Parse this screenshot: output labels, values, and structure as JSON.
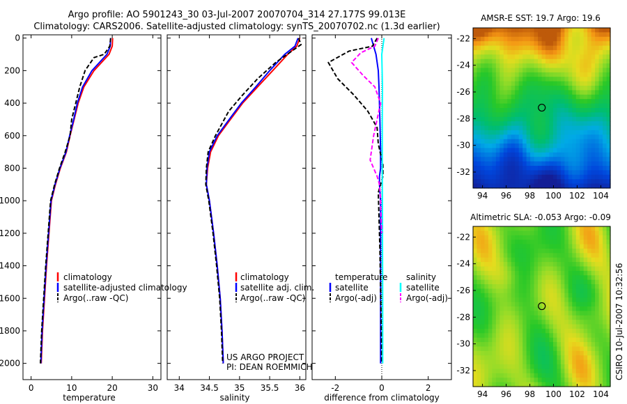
{
  "title": {
    "line1": "Argo profile: AO 5901243_30 03-Jul-2007 20070704_314 27.177S 99.013E",
    "line2": "Climatology: CARS2006. Satellite-adjusted climatology: synTS_20070702.nc (1.3d earlier)"
  },
  "colors": {
    "climatology": "#ff0000",
    "satellite": "#0000ff",
    "argo": "#000000",
    "salinity_satellite": "#00ffff",
    "salinity_argo": "#ff00ff"
  },
  "chart_data": [
    {
      "type": "line",
      "panel": "temperature",
      "xlabel": "temperature",
      "ylabel": "",
      "xlim": [
        -2,
        32
      ],
      "ylim": [
        2100,
        -20
      ],
      "y_reversed": true,
      "xticks": [
        0,
        10,
        20,
        30
      ],
      "yticks": [
        0,
        200,
        400,
        600,
        800,
        1000,
        1200,
        1400,
        1600,
        1800,
        2000
      ],
      "series": [
        {
          "name": "climatology",
          "style": "solid",
          "color": "#ff0000",
          "x": [
            20.1,
            20.0,
            19.2,
            15.5,
            13.0,
            11.6,
            10.6,
            9.6,
            8.7,
            7.2,
            6.0,
            5.0,
            4.4,
            3.8,
            3.3,
            2.8,
            2.5
          ],
          "y": [
            0,
            50,
            100,
            200,
            300,
            400,
            500,
            600,
            700,
            800,
            900,
            1000,
            1200,
            1400,
            1600,
            1800,
            2000
          ]
        },
        {
          "name": "satellite-adjusted climatology",
          "style": "solid",
          "color": "#0000ff",
          "x": [
            19.6,
            19.5,
            18.7,
            15.0,
            12.7,
            11.4,
            10.5,
            9.5,
            8.6,
            7.1,
            5.9,
            4.9,
            4.3,
            3.7,
            3.2,
            2.7,
            2.4
          ],
          "y": [
            0,
            50,
            100,
            200,
            300,
            400,
            500,
            600,
            700,
            800,
            900,
            1000,
            1200,
            1400,
            1600,
            1800,
            2000
          ]
        },
        {
          "name": "Argo(..raw -QC)",
          "style": "dashed",
          "color": "#000000",
          "x": [
            19.6,
            19.4,
            18.0,
            15.5,
            13.3,
            12.0,
            11.0,
            10.0,
            9.6,
            8.4,
            7.0,
            5.8,
            4.8,
            4.2,
            3.6,
            3.1,
            2.6,
            2.3
          ],
          "y": [
            0,
            50,
            100,
            120,
            200,
            300,
            400,
            500,
            600,
            700,
            800,
            900,
            1000,
            1200,
            1400,
            1600,
            1800,
            2000
          ]
        }
      ],
      "legend": [
        "climatology",
        "satellite-adjusted climatology",
        "Argo(..raw -QC)"
      ]
    },
    {
      "type": "line",
      "panel": "salinity",
      "xlabel": "salinity",
      "ylabel": "",
      "xlim": [
        33.8,
        36.1
      ],
      "ylim": [
        2100,
        -20
      ],
      "y_reversed": true,
      "xticks": [
        34,
        34.5,
        35,
        35.5,
        36
      ],
      "series": [
        {
          "name": "climatology",
          "style": "solid",
          "color": "#ff0000",
          "x": [
            36.0,
            35.95,
            35.8,
            35.55,
            35.3,
            35.05,
            34.85,
            34.65,
            34.52,
            34.47,
            34.45,
            34.5,
            34.57,
            34.63,
            34.68,
            34.71,
            34.73
          ],
          "y": [
            0,
            50,
            100,
            200,
            300,
            400,
            500,
            600,
            700,
            800,
            900,
            1000,
            1200,
            1400,
            1600,
            1800,
            2000
          ]
        },
        {
          "name": "satellite adj. clim.",
          "style": "solid",
          "color": "#0000ff",
          "x": [
            35.97,
            35.92,
            35.75,
            35.5,
            35.27,
            35.03,
            34.83,
            34.63,
            34.5,
            34.46,
            34.45,
            34.5,
            34.57,
            34.63,
            34.68,
            34.71,
            34.73
          ],
          "y": [
            0,
            50,
            100,
            200,
            300,
            400,
            500,
            600,
            700,
            800,
            900,
            1000,
            1200,
            1400,
            1600,
            1800,
            2000
          ]
        },
        {
          "name": "Argo(..raw -QC)",
          "style": "dashed",
          "color": "#000000",
          "x": [
            35.98,
            36.02,
            35.6,
            35.3,
            35.05,
            34.82,
            34.6,
            34.48,
            34.45,
            34.44,
            34.49,
            34.56,
            34.62,
            34.67,
            34.7,
            34.72
          ],
          "y": [
            0,
            40,
            150,
            250,
            350,
            450,
            600,
            700,
            800,
            900,
            1000,
            1200,
            1400,
            1600,
            1800,
            2000
          ]
        }
      ],
      "legend": [
        "climatology",
        "satellite adj. clim.",
        "Argo(..raw -QC)"
      ]
    },
    {
      "type": "line",
      "panel": "difference",
      "xlabel": "difference from climatology",
      "ylabel": "",
      "xlim": [
        -3,
        3
      ],
      "ylim": [
        2100,
        -20
      ],
      "y_reversed": true,
      "xticks": [
        -2,
        0,
        2
      ],
      "series": [
        {
          "name": "temperature satellite",
          "style": "solid",
          "color": "#0000ff",
          "x": [
            -0.45,
            -0.35,
            -0.25,
            -0.15,
            -0.12,
            -0.08,
            -0.05,
            -0.05,
            -0.1,
            -0.1,
            -0.05,
            -0.05,
            -0.05,
            -0.05
          ],
          "y": [
            0,
            50,
            100,
            200,
            300,
            500,
            700,
            800,
            850,
            900,
            1000,
            1400,
            1800,
            2000
          ]
        },
        {
          "name": "temperature Argo(-adj)",
          "style": "dashed",
          "color": "#000000",
          "x": [
            -0.2,
            -0.4,
            -1.4,
            -2.3,
            -1.9,
            -1.2,
            -0.6,
            -0.2,
            -0.15,
            0.05,
            0.05,
            -0.05,
            -0.15,
            -0.12,
            -0.08,
            -0.02,
            0.0
          ],
          "y": [
            0,
            50,
            80,
            150,
            250,
            350,
            450,
            550,
            650,
            780,
            850,
            900,
            950,
            1100,
            1300,
            1800,
            2000
          ]
        },
        {
          "name": "salinity satellite",
          "style": "solid",
          "color": "#00ffff",
          "x": [
            0.1,
            0.0,
            0.03,
            0.02,
            0.02,
            0.03,
            0.04,
            0.04
          ],
          "y": [
            0,
            100,
            300,
            500,
            800,
            1200,
            1600,
            2000
          ]
        },
        {
          "name": "salinity Argo(-adj)",
          "style": "dashed",
          "color": "#ff00ff",
          "x": [
            -0.15,
            -0.3,
            -0.9,
            -1.3,
            -0.8,
            -0.3,
            -0.05,
            -0.35,
            -0.5,
            -0.2,
            -0.1,
            -0.05,
            0.0
          ],
          "y": [
            0,
            50,
            90,
            150,
            230,
            300,
            400,
            600,
            750,
            850,
            900,
            1000,
            1200
          ]
        }
      ],
      "legend": [
        {
          "group": "temperature",
          "entries": [
            "satellite",
            "Argo(-adj)"
          ]
        },
        {
          "group": "salinity",
          "entries": [
            "satellite",
            "Argo(-adj)"
          ]
        }
      ]
    },
    {
      "type": "heatmap",
      "panel": "sst-map",
      "title": "AMSR-E SST: 19.7 Argo: 19.6",
      "xlim": [
        93.2,
        104.8
      ],
      "ylim": [
        -33.2,
        -21.2
      ],
      "xticks": [
        94,
        96,
        98,
        100,
        102,
        104
      ],
      "yticks": [
        -22,
        -24,
        -26,
        -28,
        -30,
        -32
      ],
      "marker": {
        "lon": 99.013,
        "lat": -27.177
      }
    },
    {
      "type": "heatmap",
      "panel": "sla-map",
      "title": "Altimetric SLA: -0.053 Argo: -0.09",
      "xlim": [
        93.2,
        104.8
      ],
      "ylim": [
        -33.2,
        -21.2
      ],
      "xticks": [
        94,
        96,
        98,
        100,
        102,
        104
      ],
      "yticks": [
        -22,
        -24,
        -26,
        -28,
        -30,
        -32
      ],
      "marker": {
        "lon": 99.013,
        "lat": -27.177
      }
    }
  ],
  "legends": {
    "temperature": [
      "climatology",
      "satellite-adjusted climatology",
      "Argo(..raw -QC)"
    ],
    "salinity": [
      "climatology",
      "satellite adj. clim.",
      "Argo(..raw -QC)"
    ],
    "difference": {
      "temperature_title": "temperature",
      "salinity_title": "salinity",
      "temperature_entries": [
        "satellite",
        "Argo(-adj)"
      ],
      "salinity_entries": [
        "satellite",
        "Argo(-adj)"
      ]
    }
  },
  "credits": {
    "project": "US ARGO PROJECT",
    "pi": "PI: DEAN ROEMMICH",
    "stamp": "CSIRO 10-Jul-2007 10:32:56"
  }
}
